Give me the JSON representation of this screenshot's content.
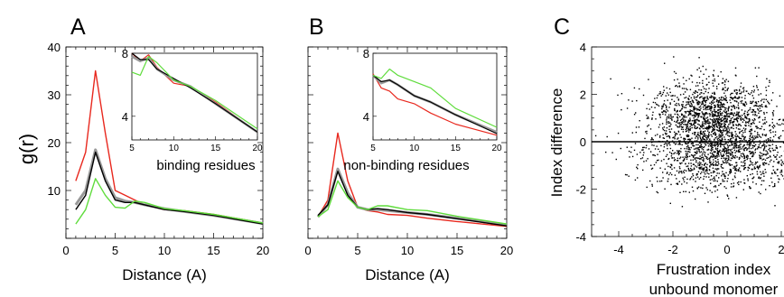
{
  "chart_data": [
    {
      "panel": "A",
      "type": "line",
      "ylabel": "g(r)",
      "xlabel": "Distance (A)",
      "xlim": [
        0,
        20
      ],
      "ylim": [
        0,
        40
      ],
      "xticks": [
        0,
        5,
        10,
        15,
        20
      ],
      "yticks": [
        10,
        20,
        30,
        40
      ],
      "annotation": "binding residues",
      "colors": {
        "red": "#e8281e",
        "black": "#000000",
        "gray": "#999999",
        "green": "#5fdc3c"
      },
      "series": [
        {
          "color": "red",
          "x": [
            1,
            2,
            3,
            4,
            5,
            6,
            7,
            8,
            10,
            12,
            15,
            20
          ],
          "y": [
            12,
            18,
            35,
            22,
            10,
            9,
            8,
            7,
            6,
            5.8,
            5,
            3.2
          ]
        },
        {
          "color": "gray",
          "x": [
            1,
            2,
            3,
            4,
            5,
            6,
            7,
            8,
            10,
            12,
            15,
            20
          ],
          "y": [
            7,
            10,
            18.5,
            12.5,
            8.5,
            7.8,
            7.5,
            7,
            6.2,
            5.6,
            4.8,
            3.1
          ]
        },
        {
          "color": "black",
          "x": [
            1,
            2,
            3,
            4,
            5,
            6,
            7,
            8,
            10,
            12,
            15,
            20
          ],
          "y": [
            6,
            9,
            18,
            12,
            8,
            7.5,
            7.5,
            7,
            6,
            5.6,
            4.8,
            3
          ]
        },
        {
          "color": "green",
          "x": [
            1,
            2,
            3,
            4,
            5,
            6,
            7,
            8,
            10,
            12,
            15,
            20
          ],
          "y": [
            3,
            6,
            12.5,
            9,
            6.5,
            6.3,
            7.8,
            7.5,
            6.2,
            5.8,
            5,
            3.2
          ]
        }
      ],
      "inset": {
        "xlim": [
          5,
          20
        ],
        "ylim": [
          2.5,
          8
        ],
        "xticks": [
          5,
          10,
          15,
          20
        ],
        "yticks": [
          4,
          8
        ],
        "series": [
          {
            "color": "red",
            "x": [
              5,
              6,
              7,
              8,
              10,
              12,
              15,
              20
            ],
            "y": [
              8,
              7.5,
              7.9,
              7.1,
              6.1,
              5.9,
              4.9,
              3
            ]
          },
          {
            "color": "gray",
            "x": [
              5,
              6,
              7,
              8,
              10,
              12,
              15,
              20
            ],
            "y": [
              7.8,
              7.5,
              7.7,
              7.0,
              6.3,
              5.9,
              4.8,
              3.0
            ]
          },
          {
            "color": "black",
            "x": [
              5,
              6,
              7,
              8,
              10,
              12,
              15,
              20
            ],
            "y": [
              8,
              7.6,
              7.6,
              7.0,
              6.4,
              5.8,
              4.8,
              3.0
            ]
          },
          {
            "color": "green",
            "x": [
              5,
              6,
              7,
              8,
              10,
              12,
              15,
              20
            ],
            "y": [
              6.8,
              6.6,
              7.8,
              7.4,
              6.3,
              5.9,
              5.0,
              3.2
            ]
          }
        ]
      }
    },
    {
      "panel": "B",
      "type": "line",
      "xlabel": "Distance (A)",
      "xlim": [
        0,
        20
      ],
      "ylim": [
        0,
        40
      ],
      "xticks": [
        0,
        5,
        10,
        15,
        20
      ],
      "annotation": "non-binding residues",
      "series": [
        {
          "color": "red",
          "x": [
            1,
            2,
            3,
            4,
            5,
            6,
            7,
            8,
            10,
            12,
            15,
            20
          ],
          "y": [
            4.5,
            8,
            22,
            12,
            6.5,
            5.8,
            5.5,
            5,
            4.8,
            4.2,
            3.5,
            2.5
          ]
        },
        {
          "color": "gray",
          "x": [
            1,
            2,
            3,
            4,
            5,
            6,
            7,
            8,
            10,
            12,
            15,
            20
          ],
          "y": [
            4.5,
            7,
            14.5,
            9.5,
            6.5,
            6,
            6,
            5.8,
            5.4,
            5,
            4.2,
            2.8
          ]
        },
        {
          "color": "black",
          "x": [
            1,
            2,
            3,
            4,
            5,
            6,
            7,
            8,
            10,
            12,
            15,
            20
          ],
          "y": [
            4.8,
            7,
            14,
            9,
            6.5,
            6,
            6.2,
            6,
            5.4,
            5,
            4.1,
            2.6
          ]
        },
        {
          "color": "green",
          "x": [
            1,
            2,
            3,
            4,
            5,
            6,
            7,
            8,
            10,
            12,
            15,
            20
          ],
          "y": [
            4.5,
            6,
            12,
            8.5,
            6.5,
            6,
            6.8,
            6.8,
            6,
            5.8,
            4.6,
            3
          ]
        }
      ],
      "inset": {
        "xlim": [
          5,
          20
        ],
        "ylim": [
          2.5,
          8
        ],
        "xticks": [
          5,
          10,
          15,
          20
        ],
        "yticks": [
          4,
          8
        ],
        "series": [
          {
            "color": "red",
            "x": [
              5,
              6,
              7,
              8,
              10,
              12,
              15,
              20
            ],
            "y": [
              6.7,
              5.8,
              5.6,
              5.1,
              4.8,
              4.2,
              3.5,
              2.8
            ]
          },
          {
            "color": "gray",
            "x": [
              5,
              6,
              7,
              8,
              10,
              12,
              15,
              20
            ],
            "y": [
              6.6,
              6.1,
              6.3,
              6.0,
              5.3,
              4.9,
              4.1,
              3.0
            ]
          },
          {
            "color": "black",
            "x": [
              5,
              6,
              7,
              8,
              10,
              12,
              15,
              20
            ],
            "y": [
              6.6,
              6.2,
              6.3,
              6.0,
              5.3,
              4.9,
              4.1,
              2.9
            ]
          },
          {
            "color": "green",
            "x": [
              5,
              6,
              7,
              8,
              10,
              12,
              15,
              20
            ],
            "y": [
              6.6,
              6.4,
              7.0,
              6.6,
              6.2,
              5.8,
              4.5,
              3.3
            ]
          }
        ]
      }
    },
    {
      "panel": "C",
      "type": "scatter",
      "ylabel": "Index difference",
      "xlabel_lines": [
        "Frustration index",
        "unbound monomer"
      ],
      "xlim": [
        -5,
        3
      ],
      "ylim": [
        -4,
        4
      ],
      "xticks": [
        -4,
        -2,
        0,
        2
      ],
      "yticks": [
        -4,
        -2,
        0,
        2,
        4
      ],
      "reference_line_y": 0,
      "point_count": 2600,
      "clusters": [
        {
          "cx": -0.6,
          "cy": 1.1,
          "sx": 1.1,
          "sy": 0.75,
          "weight": 0.55
        },
        {
          "cx": -0.2,
          "cy": -0.6,
          "sx": 1.4,
          "sy": 0.7,
          "weight": 0.45
        }
      ]
    }
  ]
}
